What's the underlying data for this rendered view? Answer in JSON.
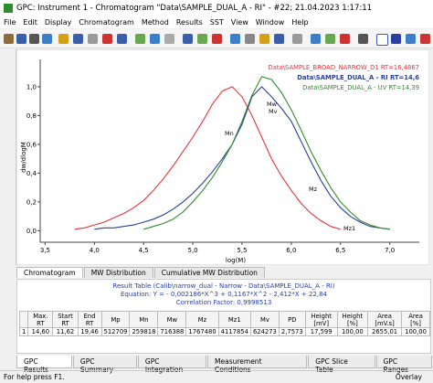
{
  "window": {
    "title": "GPC: Instrument 1 - Chromatogram \"Data\\SAMPLE_DUAL_A - RI\" - #22; 21.04.2023 1:17:11"
  },
  "menu": [
    "File",
    "Edit",
    "Display",
    "Chromatogram",
    "Method",
    "Results",
    "SST",
    "View",
    "Window",
    "Help"
  ],
  "chart_data": {
    "type": "line",
    "xlabel": "log(M)",
    "ylabel": "dw/dlogM",
    "x": [
      3.8,
      3.9,
      4.0,
      4.1,
      4.2,
      4.3,
      4.4,
      4.5,
      4.6,
      4.7,
      4.8,
      4.9,
      5.0,
      5.1,
      5.2,
      5.3,
      5.4,
      5.5,
      5.6,
      5.7,
      5.8,
      5.9,
      6.0,
      6.1,
      6.2,
      6.3,
      6.4,
      6.5,
      6.6,
      6.7,
      6.8,
      6.9,
      7.0
    ],
    "series": [
      {
        "name": "Data\\SAMPLE_BROAD_NARROW_D1 RT=16,4867",
        "color": "#e8343a",
        "values": [
          0.01,
          0.02,
          0.04,
          0.06,
          0.09,
          0.12,
          0.16,
          0.21,
          0.28,
          0.36,
          0.45,
          0.55,
          0.65,
          0.76,
          0.88,
          0.97,
          1.0,
          0.93,
          0.8,
          0.65,
          0.5,
          0.38,
          0.28,
          0.19,
          0.12,
          0.07,
          0.03,
          0.01,
          null,
          null,
          null,
          null,
          null
        ]
      },
      {
        "name": "Data\\SAMPLE_DUAL_A - RI RT=14,6",
        "color": "#2a3f9e",
        "values": [
          null,
          null,
          0.01,
          0.02,
          0.02,
          0.03,
          0.04,
          0.06,
          0.08,
          0.11,
          0.15,
          0.2,
          0.26,
          0.33,
          0.41,
          0.5,
          0.6,
          0.74,
          0.93,
          1.0,
          0.93,
          0.85,
          0.76,
          0.62,
          0.48,
          0.35,
          0.24,
          0.16,
          0.1,
          0.06,
          0.03,
          0.02,
          0.01
        ]
      },
      {
        "name": "Data\\SAMPLE_DUAL_A - UV RT=14,39",
        "color": "#2e8b2e",
        "values": [
          null,
          null,
          null,
          null,
          null,
          null,
          null,
          0.01,
          0.03,
          0.05,
          0.08,
          0.13,
          0.2,
          0.28,
          0.37,
          0.48,
          0.6,
          0.76,
          0.94,
          1.07,
          1.05,
          0.96,
          0.84,
          0.7,
          0.55,
          0.42,
          0.3,
          0.2,
          0.13,
          0.07,
          0.04,
          0.02,
          0.01
        ]
      }
    ],
    "xlim": [
      3.45,
      7.3
    ],
    "xticks": [
      {
        "value": 3.5,
        "label": "3,5"
      },
      {
        "value": 4.0,
        "label": "4,0"
      },
      {
        "value": 4.5,
        "label": "4,5"
      },
      {
        "value": 5.0,
        "label": "5,0"
      },
      {
        "value": 5.5,
        "label": "5,5"
      },
      {
        "value": 6.0,
        "label": "6,0"
      },
      {
        "value": 6.5,
        "label": "6,5"
      },
      {
        "value": 7.0,
        "label": "7,0"
      }
    ],
    "ylim": [
      -0.08,
      1.19
    ],
    "yticks": [
      {
        "value": 0,
        "label": "0,0"
      },
      {
        "value": 0.2,
        "label": "0,2"
      },
      {
        "value": 0.4,
        "label": "0,4"
      },
      {
        "value": 0.6,
        "label": "0,6"
      },
      {
        "value": 0.8,
        "label": "0,8"
      },
      {
        "value": 1.0,
        "label": "1,0"
      }
    ],
    "annotations": [
      "Mn",
      "Mw",
      "Mv",
      "Mz",
      "Mz1"
    ]
  },
  "chart_tabs": [
    "Chromatogram",
    "MW Distribution",
    "Cumulative MW Distribution"
  ],
  "results": {
    "caption": "Result Table (Calib\\narrow_dual - Narrow - Data\\SAMPLE_DUAL_A - RI)",
    "equation": "Equation: Y = - 0,002186*X^3 + 0,1167*X^2 - 2,412*X + 22,84",
    "correlation": "Correlation Factor: 0,9998513",
    "columns": [
      "Max. RT",
      "Start RT",
      "End RT",
      "Mp",
      "Mn",
      "Mw",
      "Mz",
      "Mz1",
      "Mv",
      "PD",
      "Height [mV]",
      "Height [%]",
      "Area [mV.s]",
      "Area [%]"
    ],
    "rows": [
      [
        "1",
        "14,60",
        "11,62",
        "19,46",
        "512709",
        "259818",
        "716388",
        "1767480",
        "4117854",
        "624273",
        "2,7573",
        "17,599",
        "100,00",
        "2655,01",
        "100,00"
      ]
    ]
  },
  "bottom_tabs": [
    "GPC Results",
    "GPC Summary",
    "GPC Integration",
    "Measurement Conditions",
    "GPC Slice Table",
    "GPC Ranges"
  ],
  "status": {
    "help": "For help press F1.",
    "mode": "Overlay"
  }
}
